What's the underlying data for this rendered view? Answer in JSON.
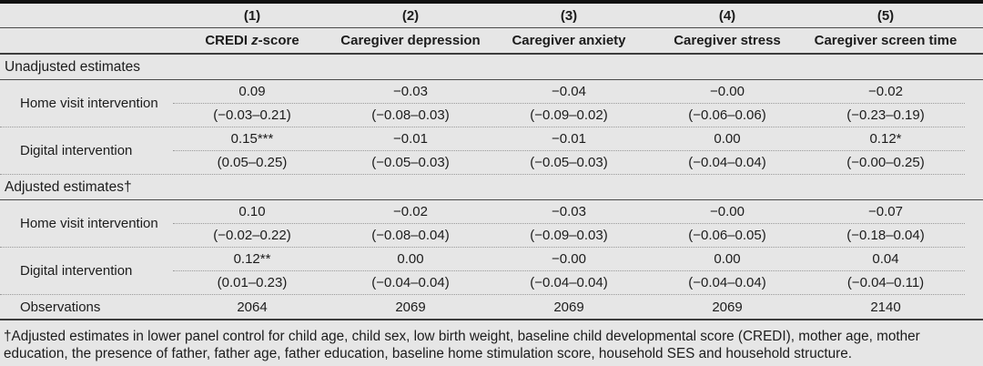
{
  "colors": {
    "background": "#e6e6e6",
    "text": "#1c1c1c",
    "rule": "#4a4a4a",
    "dotted_rule": "#9a9a9a",
    "top_bar": "#111111"
  },
  "table": {
    "columns": [
      {
        "number": "(1)",
        "label_pre": "CREDI ",
        "label_italic": "z",
        "label_post": "-score"
      },
      {
        "number": "(2)",
        "label": "Caregiver depression"
      },
      {
        "number": "(3)",
        "label": "Caregiver anxiety"
      },
      {
        "number": "(4)",
        "label": "Caregiver stress"
      },
      {
        "number": "(5)",
        "label": "Caregiver screen time"
      }
    ],
    "sections": [
      {
        "title": "Unadjusted estimates",
        "rows": [
          {
            "label": "Home visit intervention",
            "estimates": [
              "0.09",
              "−0.03",
              "−0.04",
              "−0.00",
              "−0.02"
            ],
            "intervals": [
              "(−0.03–0.21)",
              "(−0.08–0.03)",
              "(−0.09–0.02)",
              "(−0.06–0.06)",
              "(−0.23–0.19)"
            ]
          },
          {
            "label": "Digital intervention",
            "estimates": [
              "0.15***",
              "−0.01",
              "−0.01",
              "0.00",
              "0.12*"
            ],
            "intervals": [
              "(0.05–0.25)",
              "(−0.05–0.03)",
              "(−0.05–0.03)",
              "(−0.04–0.04)",
              "(−0.00–0.25)"
            ]
          }
        ]
      },
      {
        "title": "Adjusted estimates†",
        "rows": [
          {
            "label": "Home visit intervention",
            "estimates": [
              "0.10",
              "−0.02",
              "−0.03",
              "−0.00",
              "−0.07"
            ],
            "intervals": [
              "(−0.02–0.22)",
              "(−0.08–0.04)",
              "(−0.09–0.03)",
              "(−0.06–0.05)",
              "(−0.18–0.04)"
            ]
          },
          {
            "label": "Digital intervention",
            "estimates": [
              "0.12**",
              "0.00",
              "−0.00",
              "0.00",
              "0.04"
            ],
            "intervals": [
              "(0.01–0.23)",
              "(−0.04–0.04)",
              "(−0.04–0.04)",
              "(−0.04–0.04)",
              "(−0.04–0.11)"
            ]
          }
        ]
      }
    ],
    "observations": {
      "label": "Observations",
      "values": [
        "2064",
        "2069",
        "2069",
        "2069",
        "2140"
      ]
    }
  },
  "footnote": "†Adjusted estimates in lower panel control for child age, child sex, low birth weight, baseline child developmental score (CREDI), mother age, mother education, the presence of father, father age, father education, baseline home stimulation score, household SES and household structure."
}
